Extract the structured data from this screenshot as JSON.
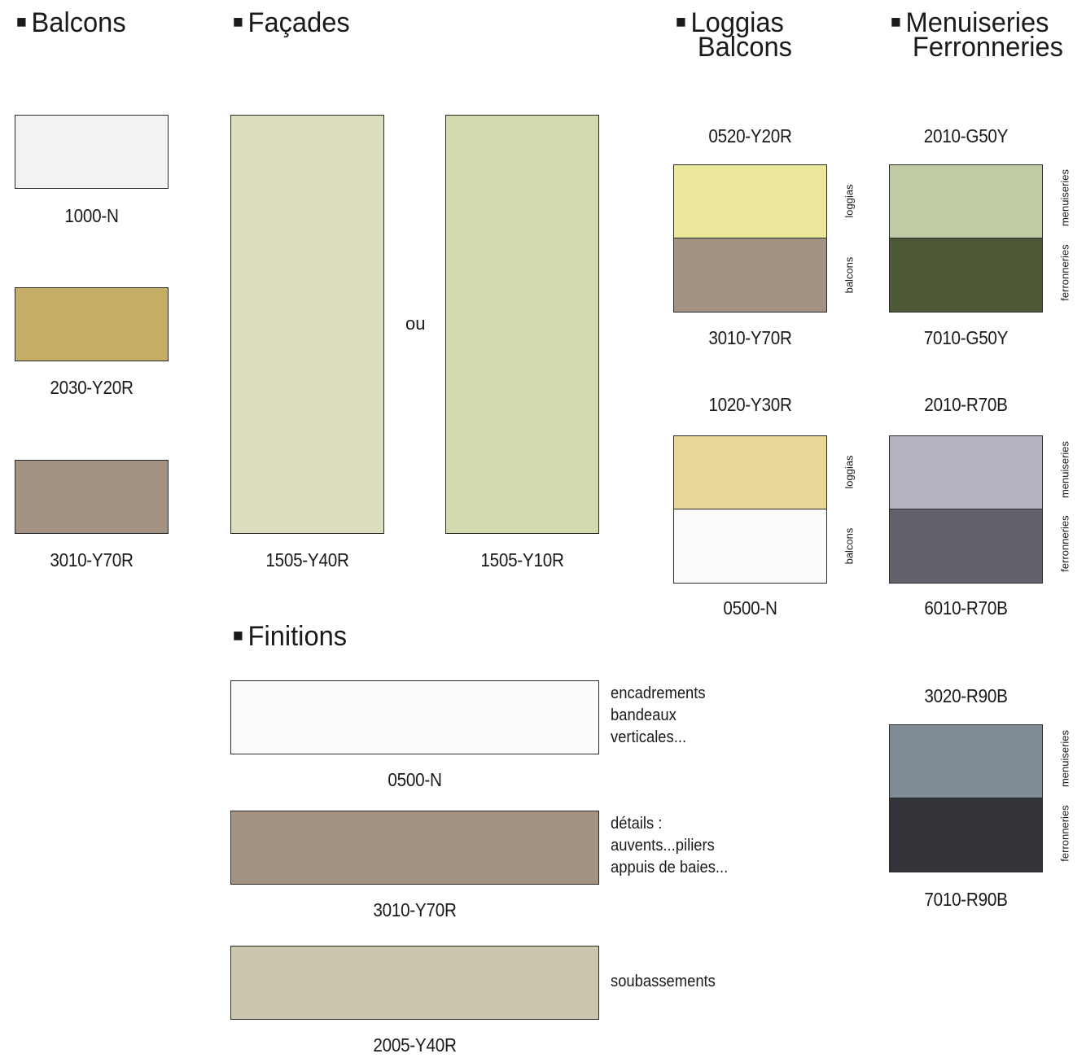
{
  "headings": {
    "balcons": "Balcons",
    "facades": "Façades",
    "loggias_line1": "Loggias",
    "loggias_line2": "Balcons",
    "menuiseries_line1": "Menuiseries",
    "menuiseries_line2": "Ferronneries",
    "finitions": "Finitions",
    "bullet": "■"
  },
  "balcons": [
    {
      "code": "1000-N",
      "color": "#f2f2f1"
    },
    {
      "code": "2030-Y20R",
      "color": "#c6ae67"
    },
    {
      "code": "3010-Y70R",
      "color": "#a49282"
    }
  ],
  "facades": {
    "left": {
      "code": "1505-Y40R",
      "color": "#ddddbf"
    },
    "right": {
      "code": "1505-Y10R",
      "color": "#d5d9b0"
    },
    "connector": "ou"
  },
  "loggias": [
    {
      "top_code": "0520-Y20R",
      "top_color": "#ebe89c",
      "bottom_code": "3010-Y70R",
      "bottom_color": "#a49282",
      "top_label": "loggias",
      "bottom_label": "balcons"
    },
    {
      "top_code": "1020-Y30R",
      "top_color": "#e8d698",
      "bottom_code": "0500-N",
      "bottom_color": "#fbfbf9",
      "top_label": "loggias",
      "bottom_label": "balcons"
    }
  ],
  "menuiseries": [
    {
      "top_code": "2010-G50Y",
      "top_color": "#c0cba6",
      "bottom_code": "7010-G50Y",
      "bottom_color": "#4d5836",
      "top_label": "menuiseries",
      "bottom_label": "ferronneries"
    },
    {
      "top_code": "2010-R70B",
      "top_color": "#b4b4c0",
      "bottom_code": "6010-R70B",
      "bottom_color": "#64616a",
      "top_label": "menuiseries",
      "bottom_label": "ferronneries"
    },
    {
      "top_code": "3020-R90B",
      "top_color": "#808c95",
      "bottom_code": "7010-R90B",
      "bottom_color": "#32343a",
      "top_label": "menuiseries",
      "bottom_label": "ferronneries"
    }
  ],
  "finitions": [
    {
      "code": "0500-N",
      "color": "#fbfbf9",
      "desc": "encadrements\nbandeaux\nverticales..."
    },
    {
      "code": "3010-Y70R",
      "color": "#a49282",
      "desc": "détails :\nauvents...piliers\nappuis de baies..."
    },
    {
      "code": "2005-Y40R",
      "color": "#cbc6ae",
      "desc": "soubassements"
    }
  ]
}
